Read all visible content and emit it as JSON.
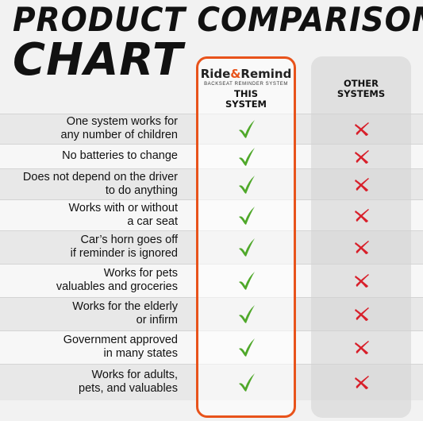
{
  "title": {
    "line1": "PRODUCT COMPARISON",
    "line2": "CHART"
  },
  "columns": {
    "this_system": {
      "brand_left": "Ride",
      "brand_amp": "&",
      "brand_right": "Remind",
      "brand_tagline": "BACKSEAT REMINDER SYSTEM",
      "heading": "THIS\nSYSTEM",
      "border_color": "#e8531b"
    },
    "other_systems": {
      "heading": "OTHER\nSYSTEMS"
    }
  },
  "icons": {
    "check": "green-check-icon",
    "cross": "red-x-icon",
    "check_color": "#4fa82a",
    "cross_color": "#d8202b"
  },
  "rows": [
    {
      "label": "One system works for\nany number of children",
      "this": "check",
      "other": "cross"
    },
    {
      "label": "No batteries to change",
      "this": "check",
      "other": "cross"
    },
    {
      "label": "Does not depend on the driver\nto do anything",
      "this": "check",
      "other": "cross"
    },
    {
      "label": "Works with or without\na car seat",
      "this": "check",
      "other": "cross"
    },
    {
      "label": "Car’s horn goes off\nif reminder is ignored",
      "this": "check",
      "other": "cross"
    },
    {
      "label": "Works for pets\nvaluables and groceries",
      "this": "check",
      "other": "cross"
    },
    {
      "label": "Works for the elderly\nor infirm",
      "this": "check",
      "other": "cross"
    },
    {
      "label": "Government approved\nin many states",
      "this": "check",
      "other": "cross"
    },
    {
      "label": "Works for adults,\npets, and valuables",
      "this": "check",
      "other": "cross"
    }
  ]
}
